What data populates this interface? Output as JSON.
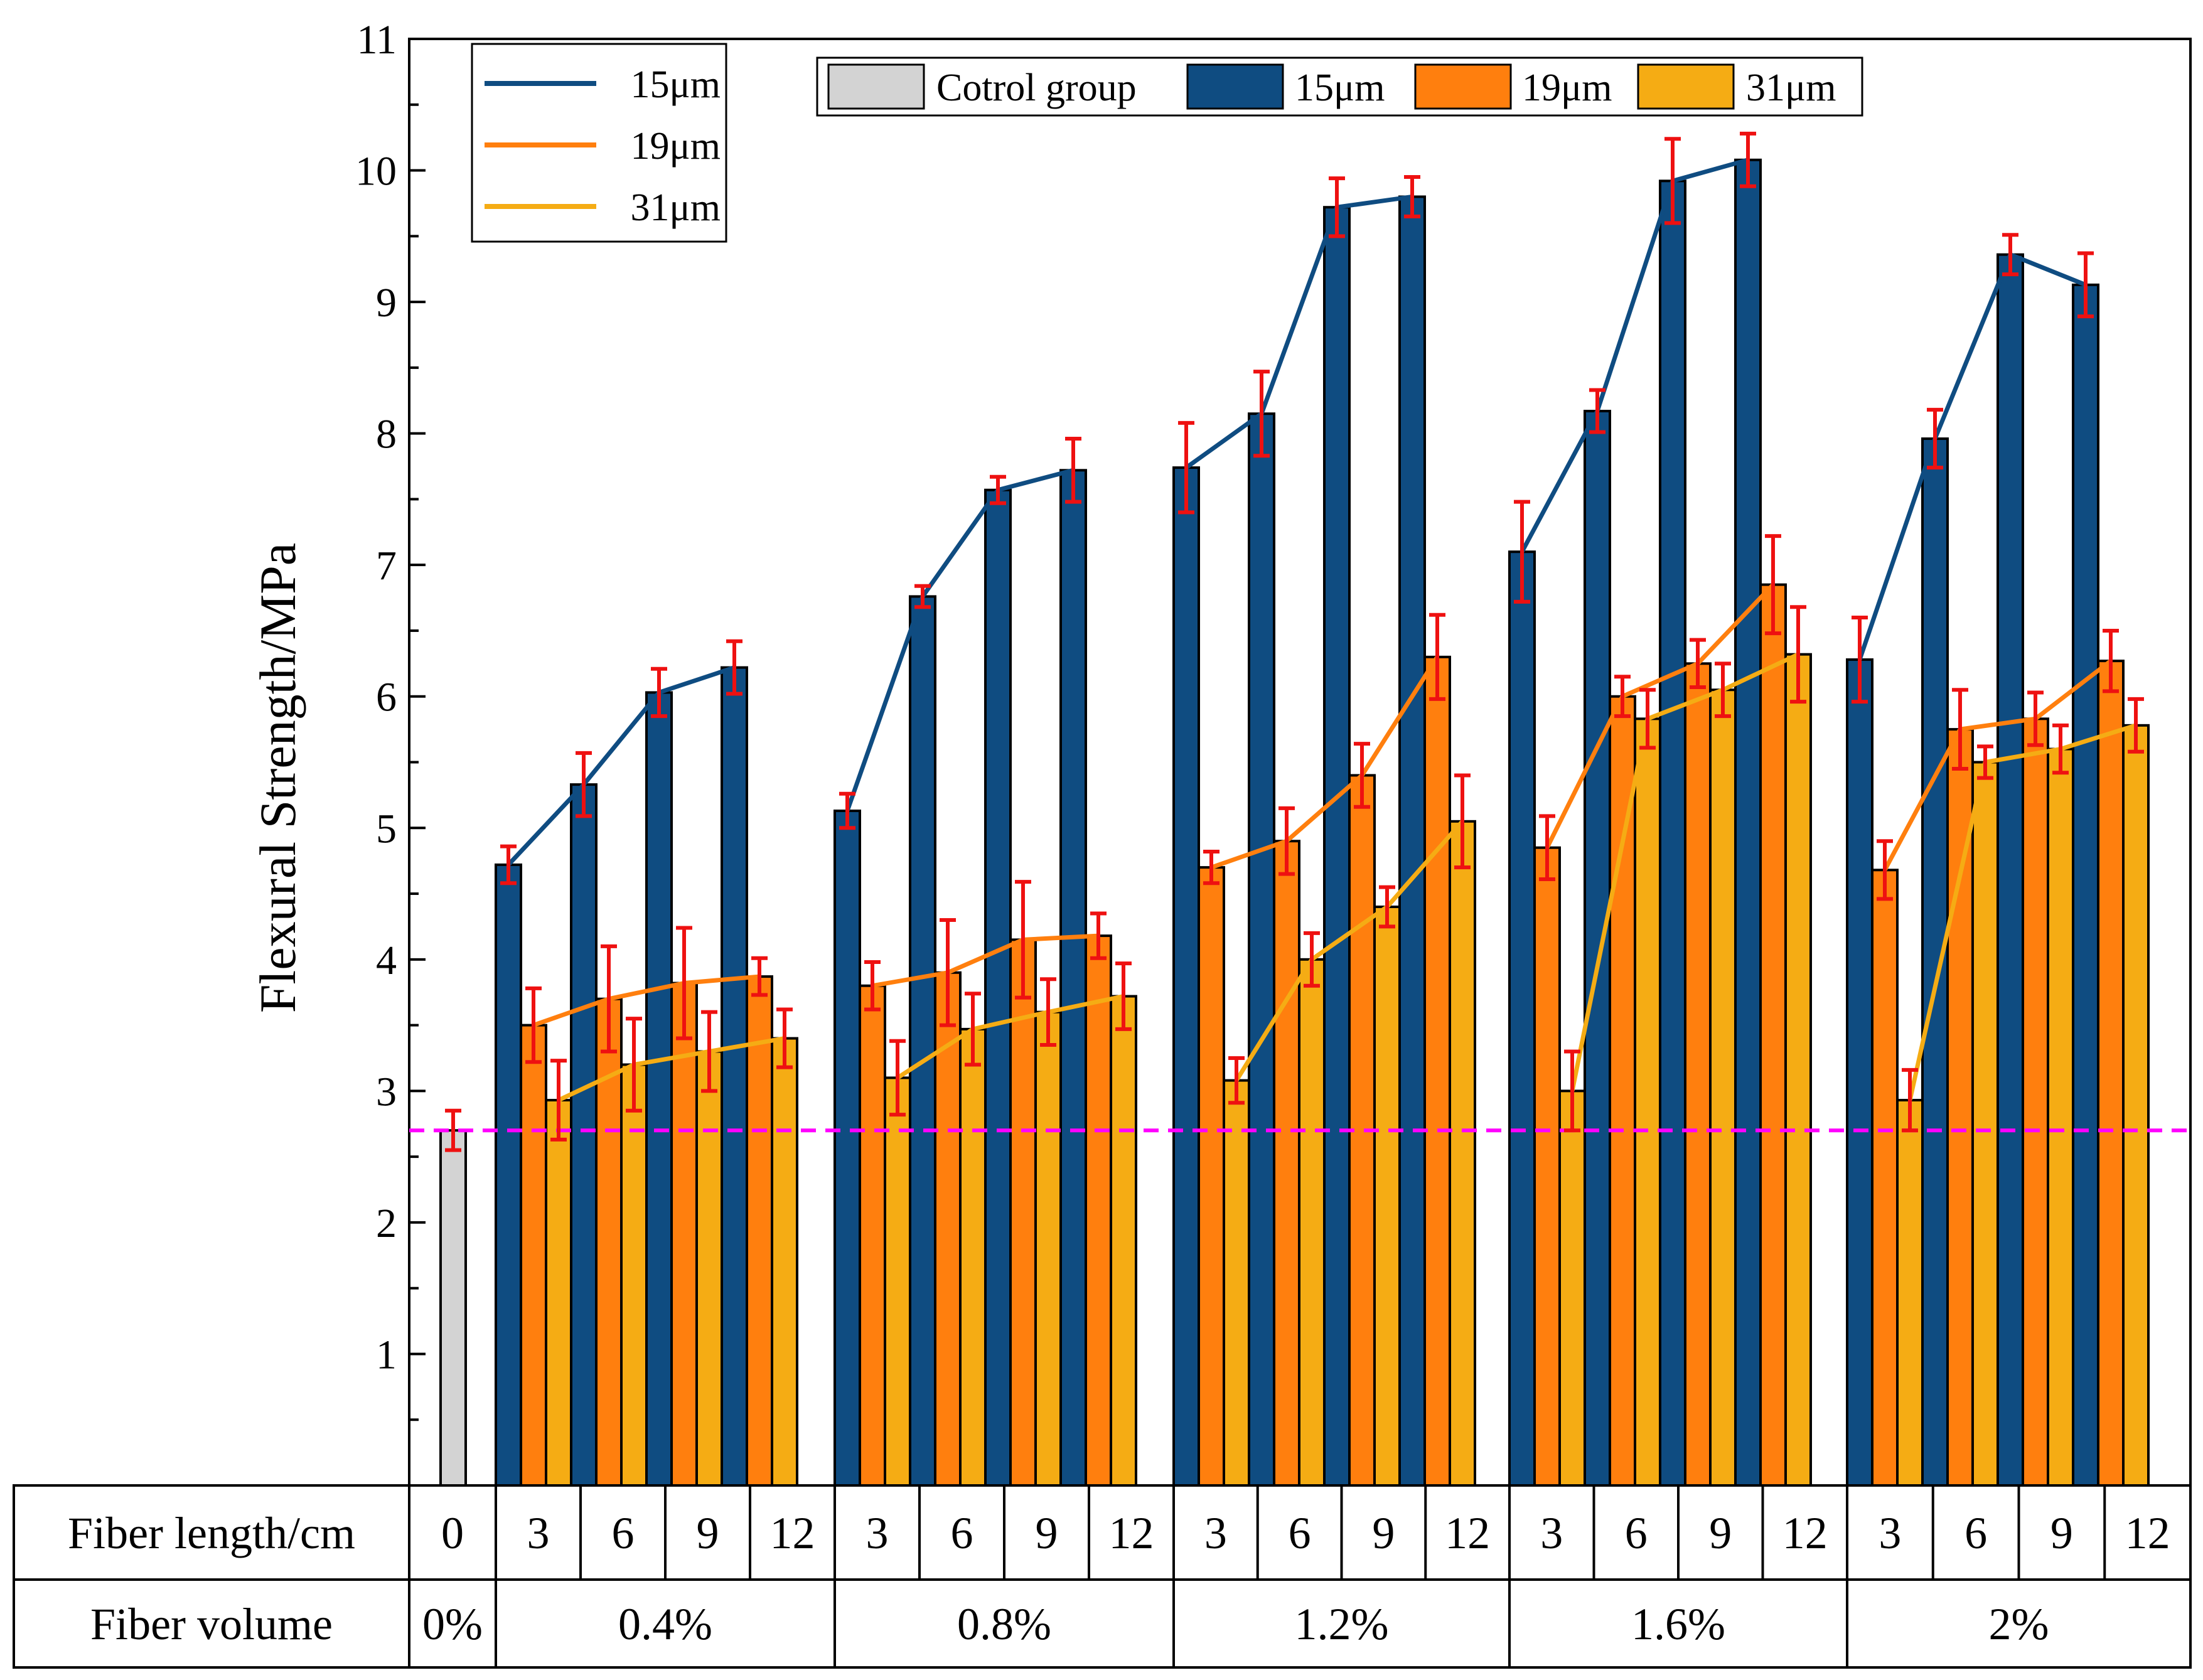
{
  "chart_data": {
    "type": "bar",
    "ylabel": "Flexural Strength/MPa",
    "ylim": [
      0,
      11
    ],
    "yticks": [
      1,
      2,
      3,
      4,
      5,
      6,
      7,
      8,
      9,
      10,
      11
    ],
    "reference_line": 2.7,
    "control": {
      "name": "Cotrol group",
      "length": "0",
      "volume": "0%",
      "value": 2.7,
      "error": 0.15
    },
    "lengths": [
      "3",
      "6",
      "9",
      "12"
    ],
    "volumes": [
      "0.4%",
      "0.8%",
      "1.2%",
      "1.6%",
      "2%"
    ],
    "table_row_labels": {
      "length": "Fiber length/cm",
      "volume": "Fiber volume"
    },
    "series": [
      {
        "name": "15μm",
        "values": [
          [
            4.72,
            5.33,
            6.03,
            6.22
          ],
          [
            5.13,
            6.76,
            7.57,
            7.72
          ],
          [
            7.74,
            8.15,
            9.72,
            9.8
          ],
          [
            7.1,
            8.17,
            9.92,
            10.08
          ],
          [
            6.28,
            7.96,
            9.36,
            9.13
          ]
        ],
        "errors": [
          [
            0.14,
            0.24,
            0.18,
            0.2
          ],
          [
            0.13,
            0.08,
            0.1,
            0.24
          ],
          [
            0.34,
            0.32,
            0.22,
            0.15
          ],
          [
            0.38,
            0.16,
            0.32,
            0.2
          ],
          [
            0.32,
            0.22,
            0.15,
            0.24
          ]
        ]
      },
      {
        "name": "19μm",
        "values": [
          [
            3.5,
            3.7,
            3.82,
            3.87
          ],
          [
            3.8,
            3.9,
            4.15,
            4.18
          ],
          [
            4.7,
            4.9,
            5.4,
            6.3
          ],
          [
            4.85,
            6.0,
            6.25,
            6.85
          ],
          [
            4.68,
            5.75,
            5.83,
            6.27
          ]
        ],
        "errors": [
          [
            0.28,
            0.4,
            0.42,
            0.14
          ],
          [
            0.18,
            0.4,
            0.44,
            0.17
          ],
          [
            0.12,
            0.25,
            0.24,
            0.32
          ],
          [
            0.24,
            0.15,
            0.18,
            0.37
          ],
          [
            0.22,
            0.3,
            0.2,
            0.23
          ]
        ]
      },
      {
        "name": "31μm",
        "values": [
          [
            2.93,
            3.2,
            3.3,
            3.4
          ],
          [
            3.1,
            3.47,
            3.6,
            3.72
          ],
          [
            3.08,
            4.0,
            4.4,
            5.05
          ],
          [
            3.0,
            5.83,
            6.05,
            6.32
          ],
          [
            2.93,
            5.5,
            5.6,
            5.78
          ]
        ],
        "errors": [
          [
            0.3,
            0.35,
            0.3,
            0.22
          ],
          [
            0.28,
            0.27,
            0.25,
            0.25
          ],
          [
            0.17,
            0.2,
            0.15,
            0.35
          ],
          [
            0.3,
            0.22,
            0.2,
            0.36
          ],
          [
            0.23,
            0.12,
            0.18,
            0.2
          ]
        ]
      }
    ],
    "colors": {
      "15μm": "#0f4c81",
      "19μm": "#ff7f0e",
      "31μm": "#f5ac14",
      "control": "#d3d3d3",
      "error": "#ee1111",
      "reference": "#ff00ff"
    },
    "legends": {
      "lines": [
        "15μm",
        "19μm",
        "31μm"
      ],
      "bars": [
        "Cotrol group",
        "15μm",
        "19μm",
        "31μm"
      ]
    }
  }
}
